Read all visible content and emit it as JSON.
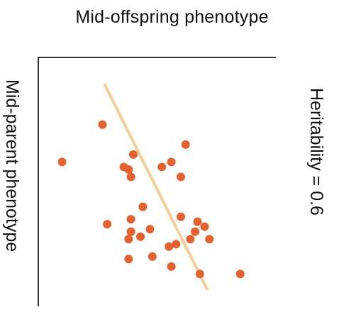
{
  "chart_data": {
    "type": "scatter",
    "title": "Mid-offspring phenotype",
    "xlabel": "Mid-offspring phenotype",
    "ylabel": "Mid-parent phenotype",
    "annotation": "Heritability  =  0.6",
    "axes": "left-and-top",
    "grid": false,
    "point_color": "#e8612c",
    "line_color": "#f7cd94",
    "points": [
      {
        "x": 0.1,
        "y": 0.58
      },
      {
        "x": 0.27,
        "y": 0.73
      },
      {
        "x": 0.29,
        "y": 0.33
      },
      {
        "x": 0.36,
        "y": 0.56
      },
      {
        "x": 0.38,
        "y": 0.55
      },
      {
        "x": 0.39,
        "y": 0.52
      },
      {
        "x": 0.4,
        "y": 0.61
      },
      {
        "x": 0.38,
        "y": 0.19
      },
      {
        "x": 0.38,
        "y": 0.27
      },
      {
        "x": 0.39,
        "y": 0.3
      },
      {
        "x": 0.39,
        "y": 0.35
      },
      {
        "x": 0.43,
        "y": 0.28
      },
      {
        "x": 0.44,
        "y": 0.4
      },
      {
        "x": 0.47,
        "y": 0.31
      },
      {
        "x": 0.48,
        "y": 0.2
      },
      {
        "x": 0.52,
        "y": 0.56
      },
      {
        "x": 0.55,
        "y": 0.24
      },
      {
        "x": 0.56,
        "y": 0.16
      },
      {
        "x": 0.56,
        "y": 0.58
      },
      {
        "x": 0.58,
        "y": 0.25
      },
      {
        "x": 0.6,
        "y": 0.36
      },
      {
        "x": 0.6,
        "y": 0.52
      },
      {
        "x": 0.62,
        "y": 0.65
      },
      {
        "x": 0.64,
        "y": 0.27
      },
      {
        "x": 0.66,
        "y": 0.3
      },
      {
        "x": 0.67,
        "y": 0.34
      },
      {
        "x": 0.68,
        "y": 0.13
      },
      {
        "x": 0.7,
        "y": 0.32
      },
      {
        "x": 0.72,
        "y": 0.27
      },
      {
        "x": 0.85,
        "y": 0.13
      }
    ],
    "regression_line": {
      "x": [
        0.28,
        0.71
      ],
      "y": [
        0.89,
        0.07
      ]
    }
  }
}
